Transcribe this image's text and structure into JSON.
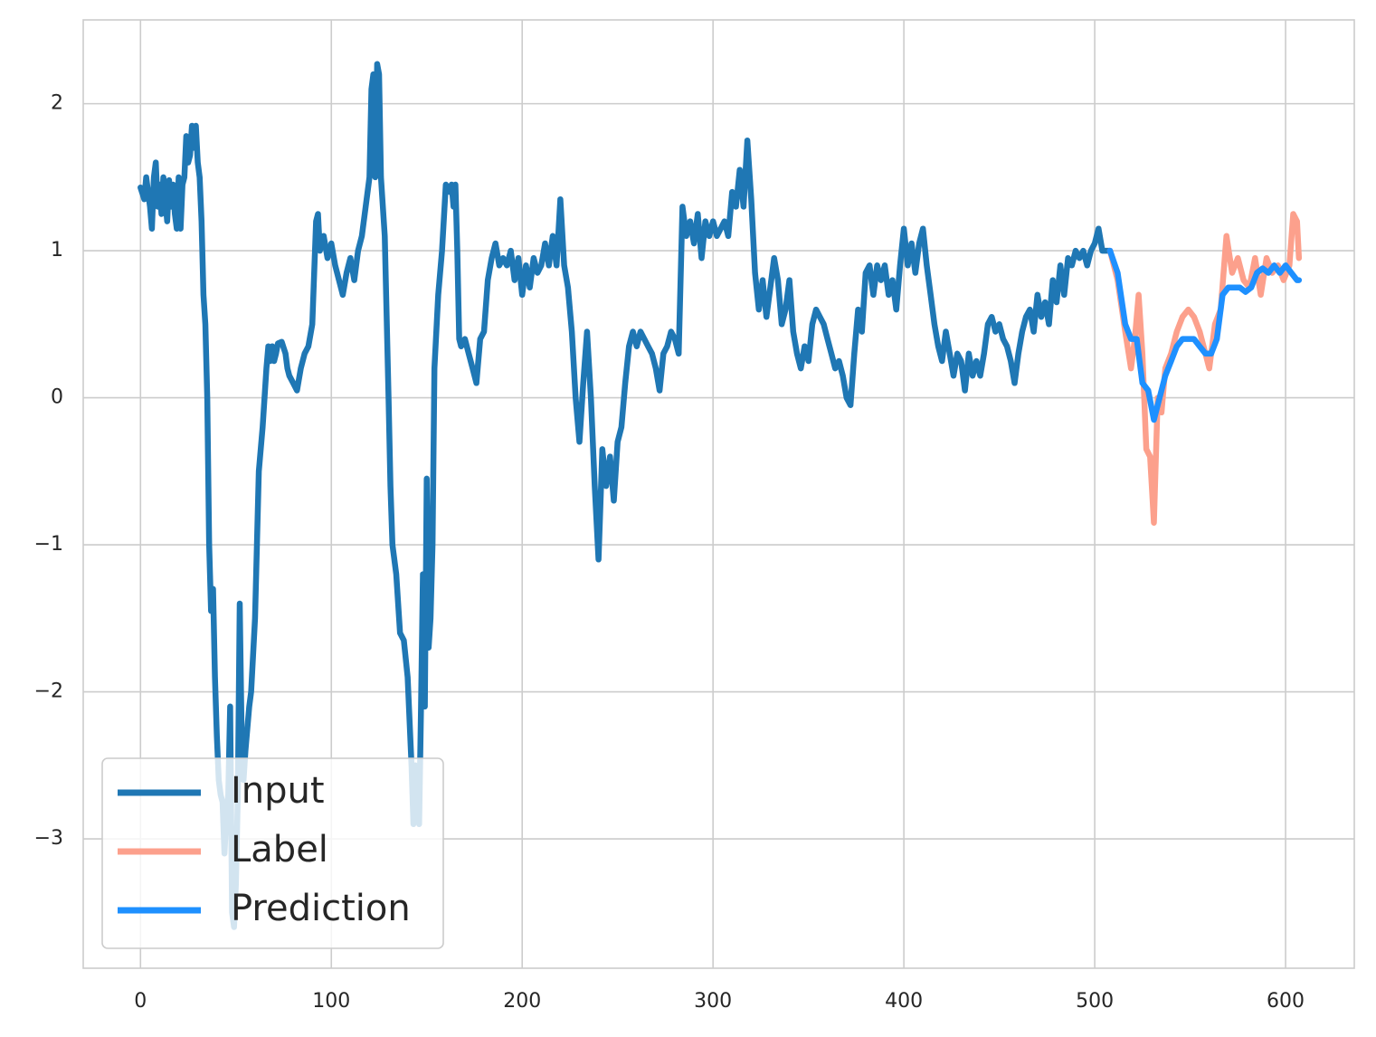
{
  "chart_data": {
    "type": "line",
    "xlim": [
      -30,
      636
    ],
    "ylim": [
      -3.88,
      2.57
    ],
    "xticks": [
      0,
      100,
      200,
      300,
      400,
      500,
      600
    ],
    "yticks": [
      {
        "value": -3,
        "label": "−3"
      },
      {
        "value": -2,
        "label": "−2"
      },
      {
        "value": -1,
        "label": "−1"
      },
      0,
      1,
      2
    ],
    "grid": true,
    "legend": "lower left",
    "series": [
      {
        "name": "Input",
        "color": "#1f77b4",
        "x": [
          0,
          2,
          3,
          5,
          6,
          7,
          8,
          9,
          10,
          11,
          12,
          13,
          14,
          15,
          16,
          17,
          18,
          19,
          20,
          21,
          22,
          23,
          24,
          25,
          26,
          27,
          28,
          29,
          30,
          31,
          32,
          33,
          34,
          35,
          36,
          37,
          38,
          39,
          40,
          41,
          42,
          43,
          44,
          45,
          46,
          47,
          48,
          49,
          50,
          51,
          52,
          53,
          54,
          55,
          57,
          58,
          60,
          62,
          64,
          66,
          67,
          68,
          69,
          70,
          71,
          72,
          74,
          76,
          77,
          78,
          80,
          82,
          84,
          86,
          88,
          90,
          92,
          93,
          94,
          96,
          98,
          100,
          102,
          104,
          106,
          108,
          110,
          112,
          114,
          116,
          118,
          120,
          121,
          122,
          123,
          124,
          125,
          126,
          128,
          130,
          131,
          132,
          134,
          136,
          138,
          140,
          142,
          143,
          144,
          146,
          147,
          148,
          149,
          150,
          151,
          152,
          153,
          154,
          156,
          158,
          160,
          162,
          163,
          164,
          165,
          166,
          167,
          168,
          170,
          172,
          174,
          176,
          178,
          180,
          182,
          184,
          186,
          188,
          190,
          192,
          194,
          196,
          198,
          200,
          202,
          204,
          206,
          208,
          210,
          212,
          214,
          216,
          218,
          220,
          222,
          224,
          226,
          228,
          230,
          232,
          234,
          236,
          238,
          240,
          242,
          244,
          246,
          248,
          250,
          252,
          254,
          256,
          258,
          260,
          262,
          264,
          266,
          268,
          270,
          272,
          274,
          276,
          278,
          280,
          282,
          284,
          286,
          288,
          290,
          292,
          294,
          296,
          298,
          300,
          302,
          304,
          306,
          308,
          310,
          312,
          314,
          316,
          318,
          320,
          322,
          324,
          326,
          328,
          330,
          332,
          334,
          336,
          338,
          340,
          342,
          344,
          346,
          348,
          350,
          352,
          354,
          356,
          358,
          360,
          362,
          364,
          366,
          368,
          370,
          372,
          374,
          376,
          378,
          380,
          382,
          384,
          386,
          388,
          390,
          392,
          394,
          396,
          398,
          400,
          402,
          404,
          406,
          408,
          410,
          412,
          414,
          416,
          418,
          420,
          422,
          424,
          426,
          428,
          430,
          432,
          434,
          436,
          438,
          440,
          442,
          444,
          446,
          448,
          450,
          452,
          454,
          456,
          458,
          460,
          462,
          464,
          466,
          468,
          470,
          472,
          474,
          476,
          478,
          480,
          482,
          484,
          486,
          488,
          490,
          492,
          494,
          496,
          498,
          500,
          502,
          504,
          508
        ],
        "values": [
          1.43,
          1.35,
          1.5,
          1.3,
          1.15,
          1.5,
          1.6,
          1.3,
          1.45,
          1.25,
          1.5,
          1.35,
          1.2,
          1.48,
          1.3,
          1.45,
          1.25,
          1.15,
          1.5,
          1.15,
          1.45,
          1.5,
          1.78,
          1.6,
          1.65,
          1.85,
          1.7,
          1.85,
          1.6,
          1.5,
          1.2,
          0.7,
          0.5,
          0.0,
          -1.0,
          -1.45,
          -1.3,
          -1.9,
          -2.3,
          -2.6,
          -2.7,
          -2.75,
          -3.1,
          -2.85,
          -2.7,
          -2.1,
          -3.5,
          -3.6,
          -3.3,
          -2.7,
          -1.4,
          -2.3,
          -2.6,
          -2.4,
          -2.1,
          -2.0,
          -1.5,
          -0.5,
          -0.2,
          0.2,
          0.35,
          0.25,
          0.35,
          0.25,
          0.3,
          0.37,
          0.38,
          0.3,
          0.2,
          0.15,
          0.1,
          0.05,
          0.2,
          0.3,
          0.35,
          0.5,
          1.2,
          1.25,
          1.0,
          1.1,
          0.95,
          1.05,
          0.9,
          0.8,
          0.7,
          0.85,
          0.95,
          0.8,
          1.0,
          1.1,
          1.3,
          1.5,
          2.1,
          2.2,
          1.5,
          2.27,
          2.2,
          1.5,
          1.1,
          0.0,
          -0.6,
          -1.0,
          -1.2,
          -1.6,
          -1.65,
          -1.9,
          -2.5,
          -2.9,
          -2.5,
          -2.9,
          -2.1,
          -1.2,
          -2.1,
          -0.55,
          -1.7,
          -1.5,
          -1.0,
          0.2,
          0.7,
          1.0,
          1.45,
          1.4,
          1.45,
          1.3,
          1.45,
          1.0,
          0.4,
          0.35,
          0.4,
          0.3,
          0.2,
          0.1,
          0.4,
          0.45,
          0.8,
          0.95,
          1.05,
          0.9,
          0.95,
          0.9,
          1.0,
          0.8,
          0.95,
          0.7,
          0.9,
          0.75,
          0.95,
          0.85,
          0.9,
          1.05,
          0.9,
          1.1,
          0.9,
          1.35,
          0.9,
          0.75,
          0.45,
          0.0,
          -0.3,
          0.1,
          0.45,
          0.0,
          -0.6,
          -1.1,
          -0.35,
          -0.6,
          -0.4,
          -0.7,
          -0.3,
          -0.2,
          0.1,
          0.35,
          0.45,
          0.35,
          0.45,
          0.4,
          0.35,
          0.3,
          0.2,
          0.05,
          0.3,
          0.35,
          0.45,
          0.4,
          0.3,
          1.3,
          1.1,
          1.2,
          1.05,
          1.25,
          0.95,
          1.2,
          1.1,
          1.2,
          1.1,
          1.15,
          1.2,
          1.1,
          1.4,
          1.3,
          1.55,
          1.3,
          1.75,
          1.35,
          0.85,
          0.6,
          0.8,
          0.55,
          0.75,
          0.95,
          0.8,
          0.5,
          0.6,
          0.8,
          0.45,
          0.3,
          0.2,
          0.35,
          0.25,
          0.5,
          0.6,
          0.55,
          0.5,
          0.4,
          0.3,
          0.2,
          0.25,
          0.15,
          0.0,
          -0.05,
          0.3,
          0.6,
          0.45,
          0.85,
          0.9,
          0.7,
          0.9,
          0.8,
          0.9,
          0.7,
          0.8,
          0.6,
          0.9,
          1.15,
          0.9,
          1.05,
          0.85,
          1.05,
          1.15,
          0.9,
          0.7,
          0.5,
          0.35,
          0.25,
          0.45,
          0.3,
          0.15,
          0.3,
          0.25,
          0.05,
          0.3,
          0.15,
          0.25,
          0.15,
          0.3,
          0.5,
          0.55,
          0.45,
          0.5,
          0.4,
          0.35,
          0.25,
          0.1,
          0.3,
          0.45,
          0.55,
          0.6,
          0.45,
          0.7,
          0.55,
          0.65,
          0.5,
          0.8,
          0.65,
          0.9,
          0.7,
          0.95,
          0.9,
          1.0,
          0.95,
          1.0,
          0.9,
          1.0,
          1.05,
          1.15,
          1.0,
          1.0
        ]
      },
      {
        "name": "Label",
        "color": "#fca08c",
        "x": [
          508,
          512,
          516,
          519,
          521,
          523,
          525,
          527,
          529,
          531,
          533,
          535,
          537,
          540,
          543,
          546,
          549,
          552,
          555,
          558,
          560,
          563,
          566,
          569,
          572,
          575,
          578,
          581,
          584,
          587,
          590,
          593,
          596,
          599,
          602,
          604,
          606,
          607
        ],
        "values": [
          1.0,
          0.8,
          0.45,
          0.2,
          0.4,
          0.7,
          0.3,
          -0.35,
          -0.4,
          -0.85,
          0.0,
          -0.1,
          0.2,
          0.3,
          0.45,
          0.55,
          0.6,
          0.55,
          0.45,
          0.3,
          0.2,
          0.5,
          0.6,
          1.1,
          0.85,
          0.95,
          0.8,
          0.75,
          0.95,
          0.7,
          0.95,
          0.85,
          0.9,
          0.8,
          0.9,
          1.25,
          1.2,
          0.95
        ]
      },
      {
        "name": "Prediction",
        "color": "#1e90ff",
        "x": [
          508,
          512,
          516,
          519,
          522,
          525,
          528,
          531,
          534,
          537,
          540,
          543,
          546,
          549,
          552,
          555,
          558,
          561,
          564,
          567,
          570,
          573,
          576,
          579,
          582,
          585,
          588,
          591,
          594,
          597,
          600,
          603,
          606,
          607
        ],
        "values": [
          1.0,
          0.85,
          0.5,
          0.4,
          0.4,
          0.1,
          0.05,
          -0.15,
          0.0,
          0.15,
          0.25,
          0.35,
          0.4,
          0.4,
          0.4,
          0.35,
          0.3,
          0.3,
          0.4,
          0.7,
          0.75,
          0.75,
          0.75,
          0.72,
          0.75,
          0.85,
          0.88,
          0.85,
          0.9,
          0.85,
          0.9,
          0.85,
          0.8,
          0.8
        ]
      }
    ]
  }
}
